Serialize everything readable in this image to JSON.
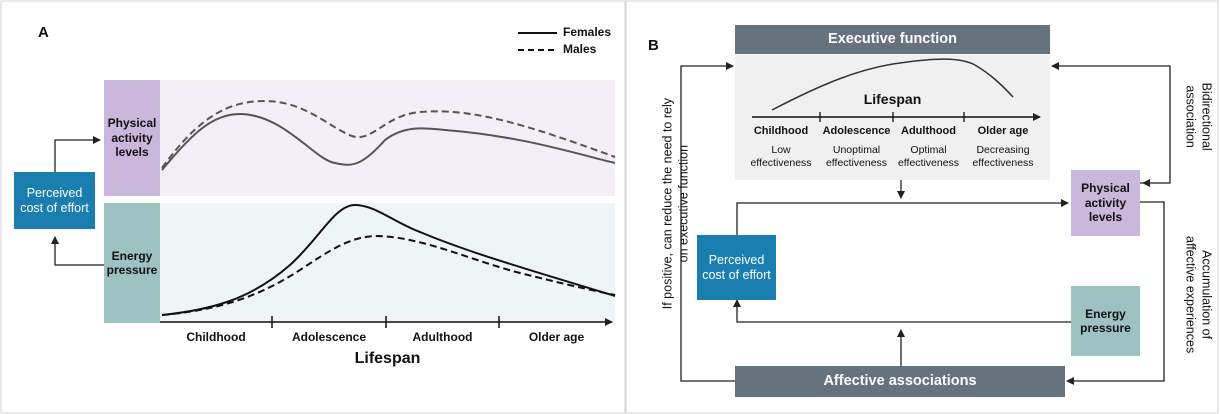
{
  "panel_a": {
    "letter": "A",
    "legend": {
      "females": "Females",
      "males": "Males"
    },
    "boxes": {
      "physical": "Physical activity levels",
      "energy": "Energy pressure",
      "perceived": "Perceived cost of effort"
    },
    "stages": [
      "Childhood",
      "Adolescence",
      "Adulthood",
      "Older age"
    ],
    "xlabel": "Lifespan"
  },
  "panel_b": {
    "letter": "B",
    "executive": "Executive function",
    "lifespan": "Lifespan",
    "stages": [
      {
        "name": "Childhood",
        "desc1": "Low",
        "desc2": "effectiveness"
      },
      {
        "name": "Adolescence",
        "desc1": "Unoptimal",
        "desc2": "effectiveness"
      },
      {
        "name": "Adulthood",
        "desc1": "Optimal",
        "desc2": "effectiveness"
      },
      {
        "name": "Older age",
        "desc1": "Decreasing",
        "desc2": "effectiveness"
      }
    ],
    "perceived": "Perceived cost of effort",
    "physical": "Physical activity levels",
    "energy": "Energy pressure",
    "affective": "Affective associations",
    "left_label_1": "If positive, can reduce the need to rely",
    "left_label_2": "on executive function",
    "right_top_label_1": "Bidirectional",
    "right_top_label_2": "association",
    "right_bottom_label_1": "Accumulation of",
    "right_bottom_label_2": "affective experiences"
  },
  "colors": {
    "purple": "#c9b8db",
    "purple_light": "#f4eff7",
    "teal": "#9dc2c1",
    "teal_light": "#eef5f6",
    "blue": "#1a7fb0",
    "slate": "#66737f",
    "line": "#3a3a3a"
  }
}
